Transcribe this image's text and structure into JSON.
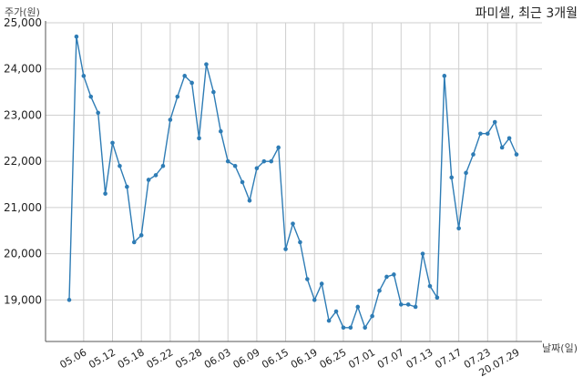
{
  "chart_data": {
    "type": "line",
    "title": "파미셀, 최근 3개월",
    "ylabel": "주가(원)",
    "xlabel": "날짜(일)",
    "ylim": [
      18100,
      25000
    ],
    "yticks": [
      19000,
      20000,
      21000,
      22000,
      23000,
      24000,
      25000
    ],
    "ytick_labels": [
      "19,000",
      "20,000",
      "21,000",
      "22,000",
      "23,000",
      "24,000",
      "25,000"
    ],
    "xtick_labels": [
      "05.06",
      "05.12",
      "05.18",
      "05.22",
      "05.28",
      "06.03",
      "06.09",
      "06.15",
      "06.19",
      "06.25",
      "07.01",
      "07.07",
      "07.13",
      "07.17",
      "07.23",
      "20.07.29"
    ],
    "xtick_index": [
      2,
      6,
      10,
      14,
      18,
      22,
      26,
      30,
      34,
      38,
      42,
      46,
      50,
      54,
      58,
      62
    ],
    "grid": true,
    "line_color": "#2e7cb5",
    "series": [
      {
        "values": [
          19000,
          24700,
          23850,
          23400,
          23050,
          21300,
          22400,
          21900,
          21450,
          20250,
          20400,
          21600,
          21700,
          21900,
          22900,
          23400,
          23850,
          23700,
          22500,
          24100,
          23500,
          22650,
          22000,
          21900,
          21550,
          21150,
          21850,
          22000,
          22000,
          22300,
          20100,
          20650,
          20250,
          19450,
          19000,
          19350,
          18550,
          18750,
          18400,
          18400,
          18850,
          18400,
          18650,
          19200,
          19500,
          19550,
          18900,
          18900,
          18850,
          20000,
          19300,
          19050,
          23850,
          21650,
          20550,
          21750,
          22150,
          22600,
          22600,
          22850,
          22300,
          22500,
          22150
        ]
      }
    ]
  }
}
